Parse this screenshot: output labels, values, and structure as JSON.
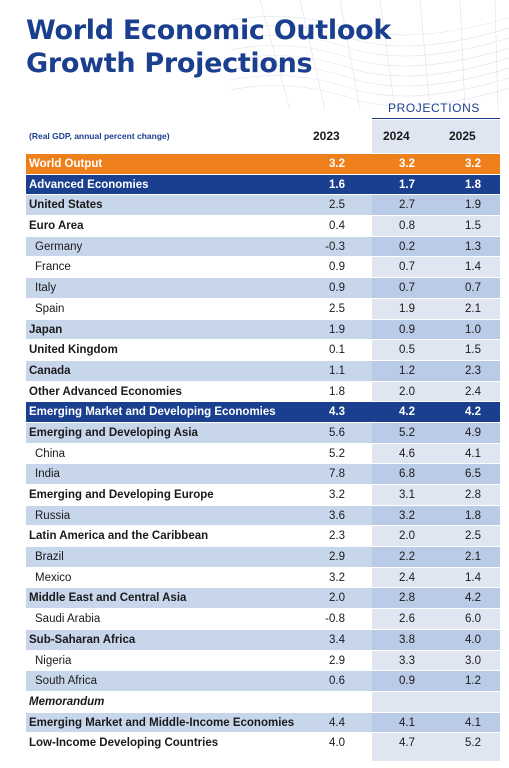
{
  "title_line1": "World Economic Outlook",
  "title_line2": "Growth Projections",
  "projections_label": "PROJECTIONS",
  "subheading": "(Real GDP, annual percent change)",
  "years": [
    "2023",
    "2024",
    "2025"
  ],
  "rows": [
    {
      "label": "World Output",
      "type": "world",
      "values": [
        "3.2",
        "3.2",
        "3.2"
      ]
    },
    {
      "label": "Advanced Economies",
      "type": "group",
      "values": [
        "1.6",
        "1.7",
        "1.8"
      ]
    },
    {
      "label": "United States",
      "type": "shaded",
      "values": [
        "2.5",
        "2.7",
        "1.9"
      ]
    },
    {
      "label": "Euro Area",
      "type": "light",
      "values": [
        "0.4",
        "0.8",
        "1.5"
      ]
    },
    {
      "label": "Germany",
      "type": "shaded",
      "indent": true,
      "values": [
        "-0.3",
        "0.2",
        "1.3"
      ]
    },
    {
      "label": "France",
      "type": "light",
      "indent": true,
      "values": [
        "0.9",
        "0.7",
        "1.4"
      ]
    },
    {
      "label": "Italy",
      "type": "shaded",
      "indent": true,
      "values": [
        "0.9",
        "0.7",
        "0.7"
      ]
    },
    {
      "label": "Spain",
      "type": "light",
      "indent": true,
      "values": [
        "2.5",
        "1.9",
        "2.1"
      ]
    },
    {
      "label": "Japan",
      "type": "shaded",
      "values": [
        "1.9",
        "0.9",
        "1.0"
      ]
    },
    {
      "label": "United Kingdom",
      "type": "light",
      "values": [
        "0.1",
        "0.5",
        "1.5"
      ]
    },
    {
      "label": "Canada",
      "type": "shaded",
      "values": [
        "1.1",
        "1.2",
        "2.3"
      ]
    },
    {
      "label": "Other Advanced Economies",
      "type": "light",
      "values": [
        "1.8",
        "2.0",
        "2.4"
      ]
    },
    {
      "label": "Emerging Market and Developing Economies",
      "type": "group",
      "values": [
        "4.3",
        "4.2",
        "4.2"
      ]
    },
    {
      "label": "Emerging and Developing Asia",
      "type": "shaded",
      "values": [
        "5.6",
        "5.2",
        "4.9"
      ]
    },
    {
      "label": "China",
      "type": "light",
      "indent": true,
      "values": [
        "5.2",
        "4.6",
        "4.1"
      ]
    },
    {
      "label": "India",
      "type": "shaded",
      "indent": true,
      "values": [
        "7.8",
        "6.8",
        "6.5"
      ]
    },
    {
      "label": "Emerging and Developing Europe",
      "type": "light",
      "values": [
        "3.2",
        "3.1",
        "2.8"
      ]
    },
    {
      "label": "Russia",
      "type": "shaded",
      "indent": true,
      "values": [
        "3.6",
        "3.2",
        "1.8"
      ]
    },
    {
      "label": "Latin America and the Caribbean",
      "type": "light",
      "values": [
        "2.3",
        "2.0",
        "2.5"
      ]
    },
    {
      "label": "Brazil",
      "type": "shaded",
      "indent": true,
      "values": [
        "2.9",
        "2.2",
        "2.1"
      ]
    },
    {
      "label": "Mexico",
      "type": "light",
      "indent": true,
      "values": [
        "3.2",
        "2.4",
        "1.4"
      ]
    },
    {
      "label": "Middle East and Central Asia",
      "type": "shaded",
      "values": [
        "2.0",
        "2.8",
        "4.2"
      ]
    },
    {
      "label": "Saudi Arabia",
      "type": "light",
      "indent": true,
      "values": [
        "-0.8",
        "2.6",
        "6.0"
      ]
    },
    {
      "label": "Sub-Saharan Africa",
      "type": "shaded",
      "values": [
        "3.4",
        "3.8",
        "4.0"
      ]
    },
    {
      "label": "Nigeria",
      "type": "light",
      "indent": true,
      "values": [
        "2.9",
        "3.3",
        "3.0"
      ]
    },
    {
      "label": "South Africa",
      "type": "shaded",
      "indent": true,
      "values": [
        "0.6",
        "0.9",
        "1.2"
      ]
    },
    {
      "label": "Memorandum",
      "type": "memo",
      "values": [
        "",
        "",
        ""
      ]
    },
    {
      "label": "Emerging Market and Middle-Income Economies",
      "type": "shaded",
      "values": [
        "4.4",
        "4.1",
        "4.1"
      ]
    },
    {
      "label": "Low-Income Developing Countries",
      "type": "light",
      "values": [
        "4.0",
        "4.7",
        "5.2"
      ]
    }
  ],
  "colors": {
    "title_blue": "#1b3f8f",
    "world_orange": "#ef7f1a",
    "row_shade": "#c8d6ec",
    "projection_shade": "#dfe6f2"
  }
}
